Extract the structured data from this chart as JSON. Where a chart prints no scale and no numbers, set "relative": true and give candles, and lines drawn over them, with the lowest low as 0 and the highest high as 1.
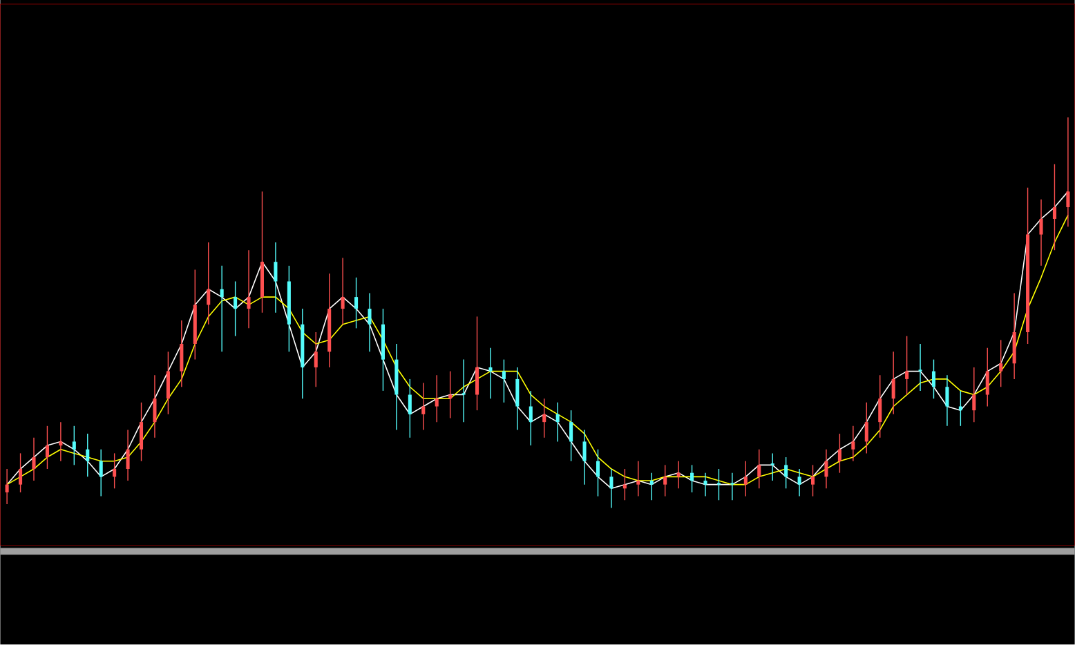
{
  "chart_data": {
    "type": "candlestick",
    "relative": true,
    "categories": [
      null,
      null,
      null,
      null,
      null,
      null,
      null,
      null,
      null,
      null,
      null,
      null,
      null,
      null,
      null,
      null,
      null,
      null,
      null,
      null,
      null,
      null,
      null,
      null,
      null,
      null,
      null,
      null,
      null,
      null,
      null,
      null,
      null,
      null,
      null,
      null,
      null,
      null,
      null,
      null,
      null,
      null,
      null,
      null,
      null,
      null,
      null,
      null,
      null,
      null,
      null,
      null,
      null,
      null,
      null,
      null,
      null,
      null,
      null,
      null,
      null,
      null,
      null,
      null,
      null,
      null,
      null,
      null,
      null,
      null,
      null,
      null,
      null,
      null,
      null,
      null,
      null,
      null,
      null,
      null
    ],
    "ohlc": [
      [
        0.04,
        0.1,
        0.01,
        0.06
      ],
      [
        0.06,
        0.14,
        0.04,
        0.1
      ],
      [
        0.1,
        0.18,
        0.07,
        0.13
      ],
      [
        0.13,
        0.21,
        0.1,
        0.16
      ],
      [
        0.16,
        0.22,
        0.12,
        0.17
      ],
      [
        0.17,
        0.21,
        0.11,
        0.15
      ],
      [
        0.15,
        0.19,
        0.08,
        0.12
      ],
      [
        0.12,
        0.15,
        0.03,
        0.08
      ],
      [
        0.08,
        0.14,
        0.05,
        0.1
      ],
      [
        0.1,
        0.2,
        0.07,
        0.15
      ],
      [
        0.15,
        0.27,
        0.12,
        0.22
      ],
      [
        0.22,
        0.34,
        0.18,
        0.28
      ],
      [
        0.28,
        0.4,
        0.24,
        0.35
      ],
      [
        0.35,
        0.48,
        0.31,
        0.42
      ],
      [
        0.42,
        0.61,
        0.38,
        0.52
      ],
      [
        0.52,
        0.68,
        0.47,
        0.56
      ],
      [
        0.56,
        0.62,
        0.4,
        0.54
      ],
      [
        0.54,
        0.58,
        0.44,
        0.51
      ],
      [
        0.51,
        0.66,
        0.46,
        0.54
      ],
      [
        0.54,
        0.81,
        0.5,
        0.63
      ],
      [
        0.63,
        0.68,
        0.5,
        0.58
      ],
      [
        0.58,
        0.62,
        0.4,
        0.47
      ],
      [
        0.47,
        0.51,
        0.28,
        0.36
      ],
      [
        0.36,
        0.45,
        0.31,
        0.4
      ],
      [
        0.4,
        0.6,
        0.36,
        0.51
      ],
      [
        0.51,
        0.64,
        0.47,
        0.54
      ],
      [
        0.54,
        0.59,
        0.46,
        0.51
      ],
      [
        0.51,
        0.55,
        0.4,
        0.47
      ],
      [
        0.47,
        0.51,
        0.3,
        0.38
      ],
      [
        0.38,
        0.42,
        0.2,
        0.29
      ],
      [
        0.29,
        0.33,
        0.18,
        0.24
      ],
      [
        0.24,
        0.32,
        0.2,
        0.26
      ],
      [
        0.26,
        0.34,
        0.22,
        0.28
      ],
      [
        0.28,
        0.35,
        0.23,
        0.29
      ],
      [
        0.29,
        0.38,
        0.22,
        0.29
      ],
      [
        0.29,
        0.49,
        0.25,
        0.36
      ],
      [
        0.36,
        0.41,
        0.28,
        0.35
      ],
      [
        0.35,
        0.38,
        0.27,
        0.33
      ],
      [
        0.33,
        0.36,
        0.2,
        0.26
      ],
      [
        0.26,
        0.3,
        0.16,
        0.22
      ],
      [
        0.22,
        0.28,
        0.18,
        0.24
      ],
      [
        0.24,
        0.27,
        0.17,
        0.22
      ],
      [
        0.22,
        0.25,
        0.12,
        0.17
      ],
      [
        0.17,
        0.2,
        0.06,
        0.12
      ],
      [
        0.12,
        0.15,
        0.03,
        0.08
      ],
      [
        0.08,
        0.1,
        0.0,
        0.05
      ],
      [
        0.05,
        0.1,
        0.02,
        0.06
      ],
      [
        0.06,
        0.12,
        0.03,
        0.07
      ],
      [
        0.07,
        0.09,
        0.02,
        0.06
      ],
      [
        0.06,
        0.11,
        0.03,
        0.08
      ],
      [
        0.08,
        0.12,
        0.05,
        0.09
      ],
      [
        0.09,
        0.11,
        0.04,
        0.07
      ],
      [
        0.07,
        0.09,
        0.03,
        0.06
      ],
      [
        0.06,
        0.1,
        0.02,
        0.06
      ],
      [
        0.06,
        0.09,
        0.02,
        0.06
      ],
      [
        0.06,
        0.12,
        0.03,
        0.08
      ],
      [
        0.08,
        0.15,
        0.05,
        0.11
      ],
      [
        0.11,
        0.14,
        0.07,
        0.11
      ],
      [
        0.11,
        0.13,
        0.05,
        0.08
      ],
      [
        0.08,
        0.1,
        0.03,
        0.06
      ],
      [
        0.06,
        0.11,
        0.03,
        0.08
      ],
      [
        0.08,
        0.15,
        0.05,
        0.12
      ],
      [
        0.12,
        0.19,
        0.09,
        0.15
      ],
      [
        0.15,
        0.21,
        0.12,
        0.17
      ],
      [
        0.17,
        0.27,
        0.14,
        0.22
      ],
      [
        0.22,
        0.34,
        0.18,
        0.28
      ],
      [
        0.28,
        0.4,
        0.24,
        0.33
      ],
      [
        0.33,
        0.44,
        0.29,
        0.35
      ],
      [
        0.35,
        0.42,
        0.3,
        0.35
      ],
      [
        0.35,
        0.38,
        0.28,
        0.31
      ],
      [
        0.31,
        0.34,
        0.21,
        0.26
      ],
      [
        0.26,
        0.3,
        0.21,
        0.25
      ],
      [
        0.25,
        0.36,
        0.22,
        0.29
      ],
      [
        0.29,
        0.41,
        0.26,
        0.35
      ],
      [
        0.35,
        0.43,
        0.31,
        0.37
      ],
      [
        0.37,
        0.55,
        0.33,
        0.45
      ],
      [
        0.45,
        0.82,
        0.42,
        0.7
      ],
      [
        0.7,
        0.79,
        0.62,
        0.74
      ],
      [
        0.74,
        0.88,
        0.66,
        0.77
      ],
      [
        0.77,
        1.0,
        0.72,
        0.81
      ]
    ],
    "colors": [
      "#ff5050",
      "#ff5050",
      "#ff5050",
      "#ff5050",
      "#ff5050",
      "#54fcfc",
      "#54fcfc",
      "#54fcfc",
      "#ff5050",
      "#ff5050",
      "#ff5050",
      "#ff5050",
      "#ff5050",
      "#ff5050",
      "#ff5050",
      "#ff5050",
      "#54fcfc",
      "#54fcfc",
      "#ff5050",
      "#ff5050",
      "#54fcfc",
      "#54fcfc",
      "#54fcfc",
      "#ff5050",
      "#ff5050",
      "#ff5050",
      "#54fcfc",
      "#54fcfc",
      "#54fcfc",
      "#54fcfc",
      "#54fcfc",
      "#ff5050",
      "#ff5050",
      "#ff5050",
      "#54fcfc",
      "#ff5050",
      "#54fcfc",
      "#54fcfc",
      "#54fcfc",
      "#54fcfc",
      "#ff5050",
      "#54fcfc",
      "#54fcfc",
      "#54fcfc",
      "#54fcfc",
      "#54fcfc",
      "#ff5050",
      "#ff5050",
      "#54fcfc",
      "#ff5050",
      "#ff5050",
      "#54fcfc",
      "#54fcfc",
      "#54fcfc",
      "#54fcfc",
      "#ff5050",
      "#ff5050",
      "#54fcfc",
      "#54fcfc",
      "#54fcfc",
      "#ff5050",
      "#ff5050",
      "#ff5050",
      "#ff5050",
      "#ff5050",
      "#ff5050",
      "#ff5050",
      "#ff5050",
      "#54fcfc",
      "#54fcfc",
      "#54fcfc",
      "#54fcfc",
      "#ff5050",
      "#ff5050",
      "#ff5050",
      "#ff5050",
      "#ff5050",
      "#ff5050",
      "#ff5050",
      "#ff5050"
    ],
    "series": [
      {
        "type": "line",
        "color": "#ffffff",
        "values": [
          0.06,
          0.1,
          0.13,
          0.16,
          0.17,
          0.15,
          0.12,
          0.08,
          0.1,
          0.15,
          0.22,
          0.28,
          0.35,
          0.42,
          0.52,
          0.56,
          0.54,
          0.51,
          0.54,
          0.63,
          0.58,
          0.47,
          0.36,
          0.4,
          0.51,
          0.54,
          0.51,
          0.47,
          0.38,
          0.29,
          0.24,
          0.26,
          0.28,
          0.29,
          0.29,
          0.36,
          0.35,
          0.33,
          0.26,
          0.22,
          0.24,
          0.22,
          0.17,
          0.12,
          0.08,
          0.05,
          0.06,
          0.07,
          0.06,
          0.08,
          0.09,
          0.07,
          0.06,
          0.06,
          0.06,
          0.08,
          0.11,
          0.11,
          0.08,
          0.06,
          0.08,
          0.12,
          0.15,
          0.17,
          0.22,
          0.28,
          0.33,
          0.35,
          0.35,
          0.31,
          0.26,
          0.25,
          0.29,
          0.35,
          0.37,
          0.45,
          0.7,
          0.74,
          0.77,
          0.81
        ]
      },
      {
        "type": "line",
        "color": "#ffff00",
        "values": [
          0.06,
          0.08,
          0.1,
          0.13,
          0.15,
          0.14,
          0.13,
          0.12,
          0.12,
          0.13,
          0.17,
          0.22,
          0.28,
          0.33,
          0.42,
          0.49,
          0.53,
          0.54,
          0.52,
          0.54,
          0.54,
          0.51,
          0.45,
          0.42,
          0.43,
          0.47,
          0.48,
          0.49,
          0.43,
          0.36,
          0.31,
          0.28,
          0.28,
          0.28,
          0.31,
          0.33,
          0.35,
          0.35,
          0.35,
          0.29,
          0.26,
          0.24,
          0.22,
          0.19,
          0.13,
          0.1,
          0.08,
          0.07,
          0.07,
          0.08,
          0.08,
          0.08,
          0.08,
          0.07,
          0.06,
          0.06,
          0.08,
          0.09,
          0.1,
          0.09,
          0.08,
          0.1,
          0.12,
          0.13,
          0.16,
          0.2,
          0.26,
          0.29,
          0.32,
          0.33,
          0.33,
          0.3,
          0.29,
          0.31,
          0.35,
          0.4,
          0.51,
          0.59,
          0.68,
          0.75
        ]
      }
    ]
  }
}
